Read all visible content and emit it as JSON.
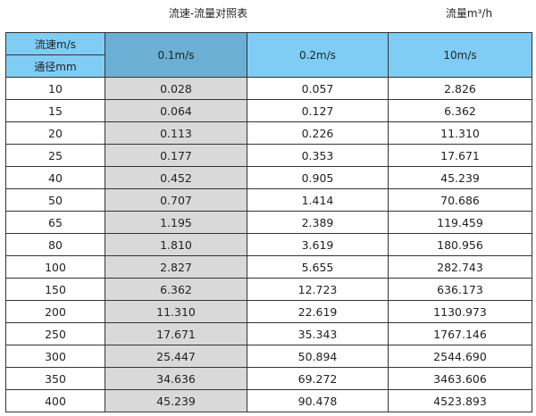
{
  "title": "流速-流量对照表",
  "unit_label": "流量m³/h",
  "header": {
    "speed_label": "流速m/s",
    "diameter_label": "通径mm",
    "columns": [
      "0.1m/s",
      "0.2m/s",
      "10m/s"
    ]
  },
  "colors": {
    "header": "#7fcdf4",
    "header_selected": "#6bb0d4",
    "selected_column": "#d9d9d9"
  },
  "rows": [
    [
      "10",
      "0.028",
      "0.057",
      "2.826"
    ],
    [
      "15",
      "0.064",
      "0.127",
      "6.362"
    ],
    [
      "20",
      "0.113",
      "0.226",
      "11.310"
    ],
    [
      "25",
      "0.177",
      "0.353",
      "17.671"
    ],
    [
      "40",
      "0.452",
      "0.905",
      "45.239"
    ],
    [
      "50",
      "0.707",
      "1.414",
      "70.686"
    ],
    [
      "65",
      "1.195",
      "2.389",
      "119.459"
    ],
    [
      "80",
      "1.810",
      "3.619",
      "180.956"
    ],
    [
      "100",
      "2.827",
      "5.655",
      "282.743"
    ],
    [
      "150",
      "6.362",
      "12.723",
      "636.173"
    ],
    [
      "200",
      "11.310",
      "22.619",
      "1130.973"
    ],
    [
      "250",
      "17.671",
      "35.343",
      "1767.146"
    ],
    [
      "300",
      "25.447",
      "50.894",
      "2544.690"
    ],
    [
      "350",
      "34.636",
      "69.272",
      "3463.606"
    ],
    [
      "400",
      "45.239",
      "90.478",
      "4523.893"
    ]
  ]
}
